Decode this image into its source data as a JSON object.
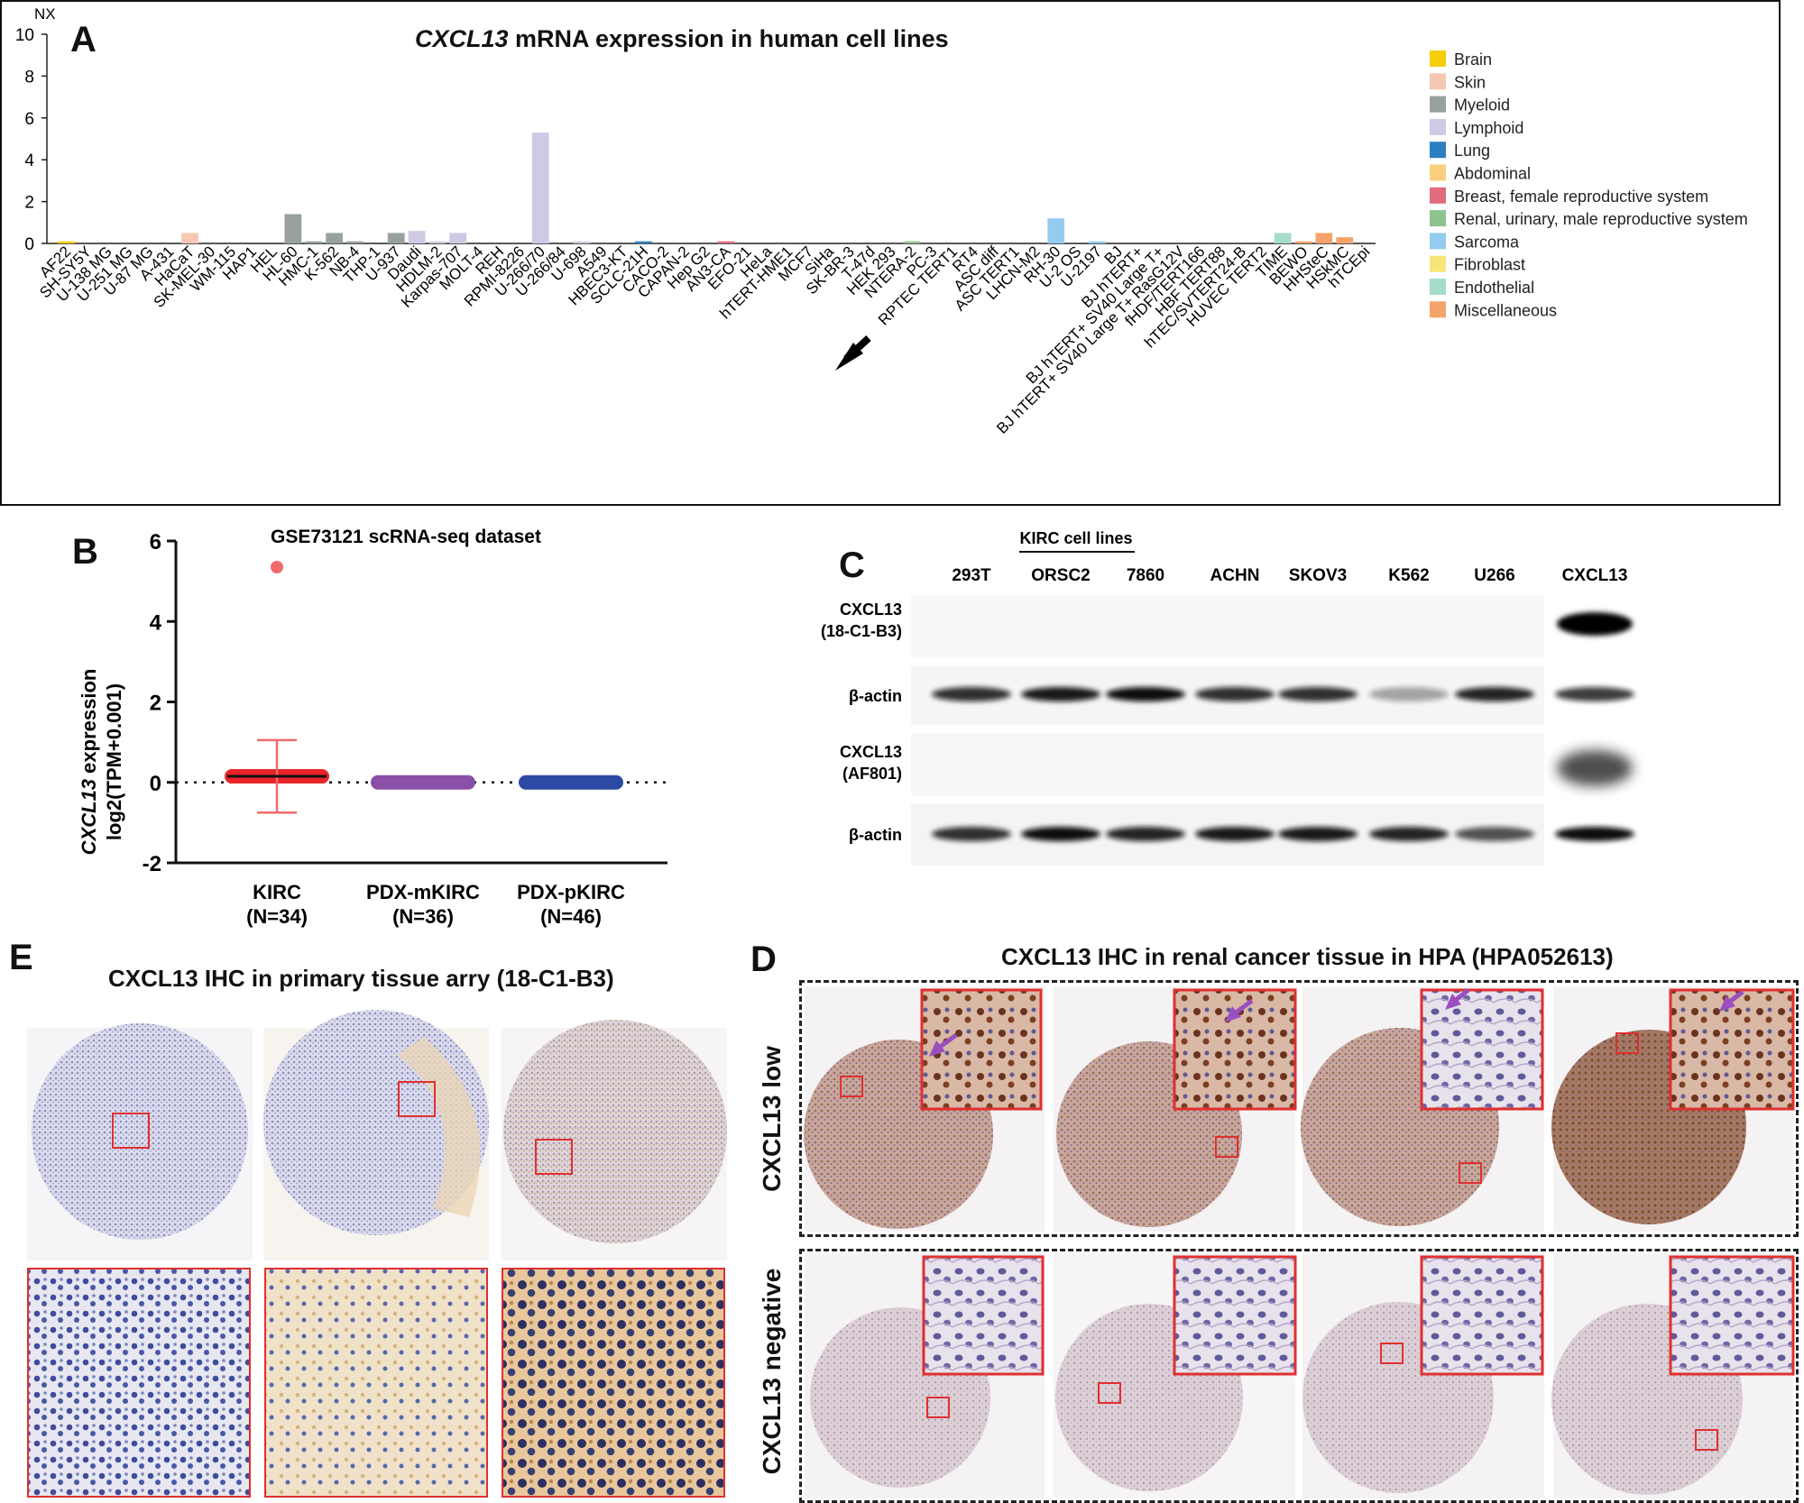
{
  "panelA": {
    "letter": "A",
    "title_gene": "CXCL13",
    "title_rest": " mRNA expression in human cell lines",
    "y_unit": "NX",
    "y_ticks": [
      "0",
      "2",
      "4",
      "6",
      "8",
      "10"
    ],
    "arrow_label": "HEK 293",
    "legend": [
      {
        "name": "Brain",
        "color": "#f5cf09"
      },
      {
        "name": "Skin",
        "color": "#f6c8b3"
      },
      {
        "name": "Myeloid",
        "color": "#98a0a0"
      },
      {
        "name": "Lymphoid",
        "color": "#cfc9e5"
      },
      {
        "name": "Lung",
        "color": "#2a7fc1"
      },
      {
        "name": "Abdominal",
        "color": "#f8d080"
      },
      {
        "name": "Breast, female reproductive system",
        "color": "#e06c7e"
      },
      {
        "name": "Renal, urinary, male reproductive system",
        "color": "#8fc28f"
      },
      {
        "name": "Sarcoma",
        "color": "#93ccef"
      },
      {
        "name": "Fibroblast",
        "color": "#f6e67a"
      },
      {
        "name": "Endothelial",
        "color": "#a6dccb"
      },
      {
        "name": "Miscellaneous",
        "color": "#f4a46a"
      }
    ]
  },
  "panelB": {
    "letter": "B",
    "title": "GSE73121 scRNA-seq dataset",
    "ylabel_gene": "CXCL13",
    "ylabel_rest": " expression",
    "ylabel_line2": "log2(TPM+0.001)",
    "groups": [
      {
        "name": "KIRC",
        "n": "(N=34)",
        "color": "#e8242a"
      },
      {
        "name": "PDX-mKIRC",
        "n": "(N=36)",
        "color": "#8a4fa6"
      },
      {
        "name": "PDX-pKIRC",
        "n": "(N=46)",
        "color": "#2b4aa3"
      }
    ]
  },
  "panelC": {
    "letter": "C",
    "group_label": "KIRC cell lines",
    "lanes": [
      "293T",
      "ORSC2",
      "7860",
      "ACHN",
      "SKOV3",
      "K562",
      "U266",
      "CXCL13"
    ],
    "rows": [
      {
        "line1": "CXCL13",
        "line2": "(18-C1-B3)"
      },
      {
        "line1": "β-actin",
        "line2": ""
      },
      {
        "line1": "CXCL13",
        "line2": "(AF801)"
      },
      {
        "line1": "β-actin",
        "line2": ""
      }
    ]
  },
  "panelD": {
    "letter": "D",
    "title": "CXCL13 IHC in renal cancer tissue in HPA (HPA052613)",
    "row_low": "CXCL13 low",
    "row_negative": "CXCL13 negative"
  },
  "panelE": {
    "letter": "E",
    "title": "CXCL13 IHC in primary tissue arry (18-C1-B3)"
  },
  "chart_data": [
    {
      "type": "bar",
      "title": "CXCL13 mRNA expression in human cell lines",
      "xlabel": "",
      "ylabel": "NX",
      "ylim": [
        0,
        10
      ],
      "categories": [
        "AF22",
        "SH-SY5Y",
        "U-138 MG",
        "U-251 MG",
        "U-87 MG",
        "A-431",
        "HaCaT",
        "SK-MEL-30",
        "WM-115",
        "HAP1",
        "HEL",
        "HL-60",
        "HMC-1",
        "K-562",
        "NB-4",
        "THP-1",
        "U-937",
        "Daudi",
        "HDLM-2",
        "Karpas-707",
        "MOLT-4",
        "REH",
        "RPMI-8226",
        "U-266/70",
        "U-266/84",
        "U-698",
        "A549",
        "HBEC3-KT",
        "SCLC-21H",
        "CACO-2",
        "CAPAN-2",
        "Hep G2",
        "AN3-CA",
        "EFO-21",
        "HeLa",
        "hTERT-HME1",
        "MCF7",
        "SiHa",
        "SK-BR-3",
        "T-47d",
        "HEK 293",
        "NTERA-2",
        "PC-3",
        "RPTEC TERT1",
        "RT4",
        "ASC diff",
        "ASC TERT1",
        "LHCN-M2",
        "RH-30",
        "U-2 OS",
        "U-2197",
        "BJ",
        "BJ hTERT+",
        "BJ hTERT+ SV40 Large T+",
        "BJ hTERT+ SV40 Large T+ RasG12V",
        "fHDF/TERT166",
        "HBF TERT88",
        "hTEC/SVTERT24-B",
        "HUVEC TERT2",
        "TIME",
        "BEWO",
        "HHSteC",
        "HSkMC",
        "hTCEpi"
      ],
      "values": [
        0.1,
        0,
        0,
        0,
        0,
        0,
        0.5,
        0,
        0,
        0,
        0,
        1.4,
        0.1,
        0.5,
        0.1,
        0,
        0.5,
        0.6,
        0.1,
        0.5,
        0,
        0,
        0,
        5.3,
        0,
        0.1,
        0,
        0,
        0.1,
        0,
        0,
        0,
        0.1,
        0,
        0,
        0,
        0,
        0,
        0,
        0,
        0,
        0.1,
        0,
        0,
        0,
        0,
        0,
        0,
        1.2,
        0,
        0.1,
        0,
        0,
        0,
        0,
        0,
        0,
        0,
        0,
        0.5,
        0.1,
        0.5,
        0.3,
        0
      ],
      "tissue_colors": [
        "#f5cf09",
        "#f5cf09",
        "#f5cf09",
        "#f5cf09",
        "#f5cf09",
        "#f6c8b3",
        "#f6c8b3",
        "#f6c8b3",
        "#f6c8b3",
        "#98a0a0",
        "#98a0a0",
        "#98a0a0",
        "#98a0a0",
        "#98a0a0",
        "#98a0a0",
        "#98a0a0",
        "#98a0a0",
        "#cfc9e5",
        "#cfc9e5",
        "#cfc9e5",
        "#cfc9e5",
        "#cfc9e5",
        "#cfc9e5",
        "#cfc9e5",
        "#cfc9e5",
        "#cfc9e5",
        "#2a7fc1",
        "#2a7fc1",
        "#2a7fc1",
        "#f8d080",
        "#f8d080",
        "#f8d080",
        "#e06c7e",
        "#e06c7e",
        "#e06c7e",
        "#e06c7e",
        "#e06c7e",
        "#e06c7e",
        "#e06c7e",
        "#e06c7e",
        "#8fc28f",
        "#8fc28f",
        "#8fc28f",
        "#8fc28f",
        "#8fc28f",
        "#93ccef",
        "#93ccef",
        "#93ccef",
        "#93ccef",
        "#93ccef",
        "#93ccef",
        "#f6e67a",
        "#f6e67a",
        "#f6e67a",
        "#f6e67a",
        "#f6e67a",
        "#f6e67a",
        "#a6dccb",
        "#a6dccb",
        "#a6dccb",
        "#f4a46a",
        "#f4a46a",
        "#f4a46a",
        "#f4a46a"
      ]
    },
    {
      "type": "scatter",
      "title": "GSE73121 scRNA-seq dataset",
      "xlabel": "",
      "ylabel": "CXCL13 expression log2(TPM+0.001)",
      "ylim": [
        -2,
        6
      ],
      "categories": [
        "KIRC (N=34)",
        "PDX-mKIRC (N=36)",
        "PDX-pKIRC (N=46)"
      ],
      "series": [
        {
          "name": "KIRC",
          "mean": 0.15,
          "sd_low": -0.75,
          "sd_high": 1.05,
          "outlier": 5.35
        },
        {
          "name": "PDX-mKIRC",
          "mean": 0,
          "sd_low": 0,
          "sd_high": 0
        },
        {
          "name": "PDX-pKIRC",
          "mean": 0,
          "sd_low": 0,
          "sd_high": 0
        }
      ],
      "reference_line": 0
    }
  ]
}
